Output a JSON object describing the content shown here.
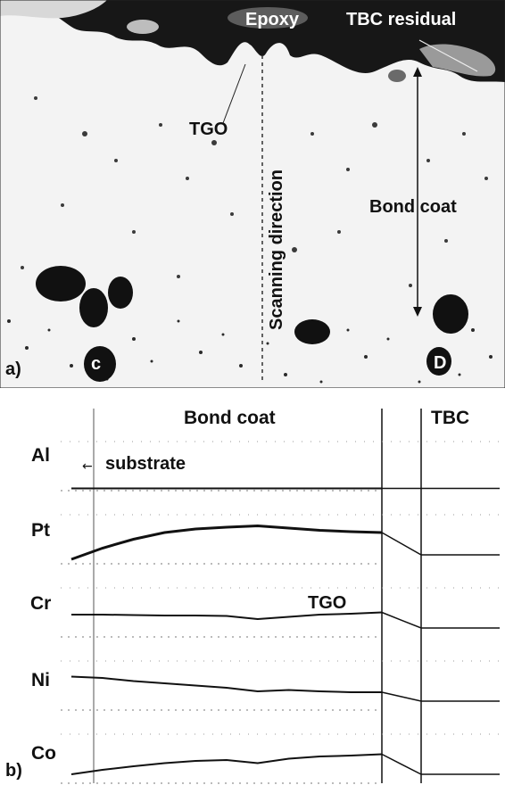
{
  "panel_a": {
    "panel_label": "a)",
    "labels": {
      "epoxy": "Epoxy",
      "tbc_residual": "TBC residual",
      "tgo": "TGO",
      "scanning_direction": "Scanning direction",
      "bond_coat": "Bond coat",
      "marker_c": "c",
      "marker_d": "D"
    },
    "colors": {
      "epoxy_region": "#1a1a1a",
      "bond_coat": "#f4f4f4",
      "particles": "#2a2a2a"
    }
  },
  "panel_b": {
    "panel_label": "b)",
    "header_bond_coat": "Bond coat",
    "header_tbc": "TBC",
    "tgo_label": "TGO",
    "substrate_label": "substrate",
    "elements": [
      "Al",
      "Pt",
      "Cr",
      "Ni",
      "Co"
    ]
  },
  "chart_data": {
    "type": "line",
    "title": "",
    "xlabel": "",
    "ylabel": "",
    "series": [
      {
        "name": "Al",
        "x": [
          0,
          0.1,
          0.2,
          0.3,
          0.4,
          0.5,
          0.6,
          0.7,
          0.8,
          0.9,
          1.0
        ],
        "values": [
          0.05,
          0.05,
          0.05,
          0.05,
          0.05,
          0.05,
          0.05,
          0.05,
          0.05,
          0.05,
          0.05
        ]
      },
      {
        "name": "Pt",
        "x": [
          0,
          0.1,
          0.2,
          0.3,
          0.4,
          0.5,
          0.6,
          0.7,
          0.8,
          0.9,
          1.0
        ],
        "values": [
          0.1,
          0.35,
          0.55,
          0.7,
          0.78,
          0.82,
          0.85,
          0.8,
          0.75,
          0.72,
          0.7
        ]
      },
      {
        "name": "Cr",
        "x": [
          0,
          0.1,
          0.2,
          0.3,
          0.4,
          0.5,
          0.6,
          0.7,
          0.8,
          0.9,
          1.0
        ],
        "values": [
          0.5,
          0.5,
          0.49,
          0.48,
          0.48,
          0.47,
          0.4,
          0.45,
          0.5,
          0.52,
          0.55
        ]
      },
      {
        "name": "Ni",
        "x": [
          0,
          0.1,
          0.2,
          0.3,
          0.4,
          0.5,
          0.6,
          0.7,
          0.8,
          0.9,
          1.0
        ],
        "values": [
          0.75,
          0.72,
          0.65,
          0.6,
          0.55,
          0.5,
          0.42,
          0.45,
          0.42,
          0.4,
          0.4
        ]
      },
      {
        "name": "Co",
        "x": [
          0,
          0.1,
          0.2,
          0.3,
          0.4,
          0.5,
          0.6,
          0.7,
          0.8,
          0.9,
          1.0
        ],
        "values": [
          0.2,
          0.3,
          0.38,
          0.45,
          0.5,
          0.52,
          0.45,
          0.55,
          0.6,
          0.62,
          0.65
        ]
      }
    ]
  }
}
